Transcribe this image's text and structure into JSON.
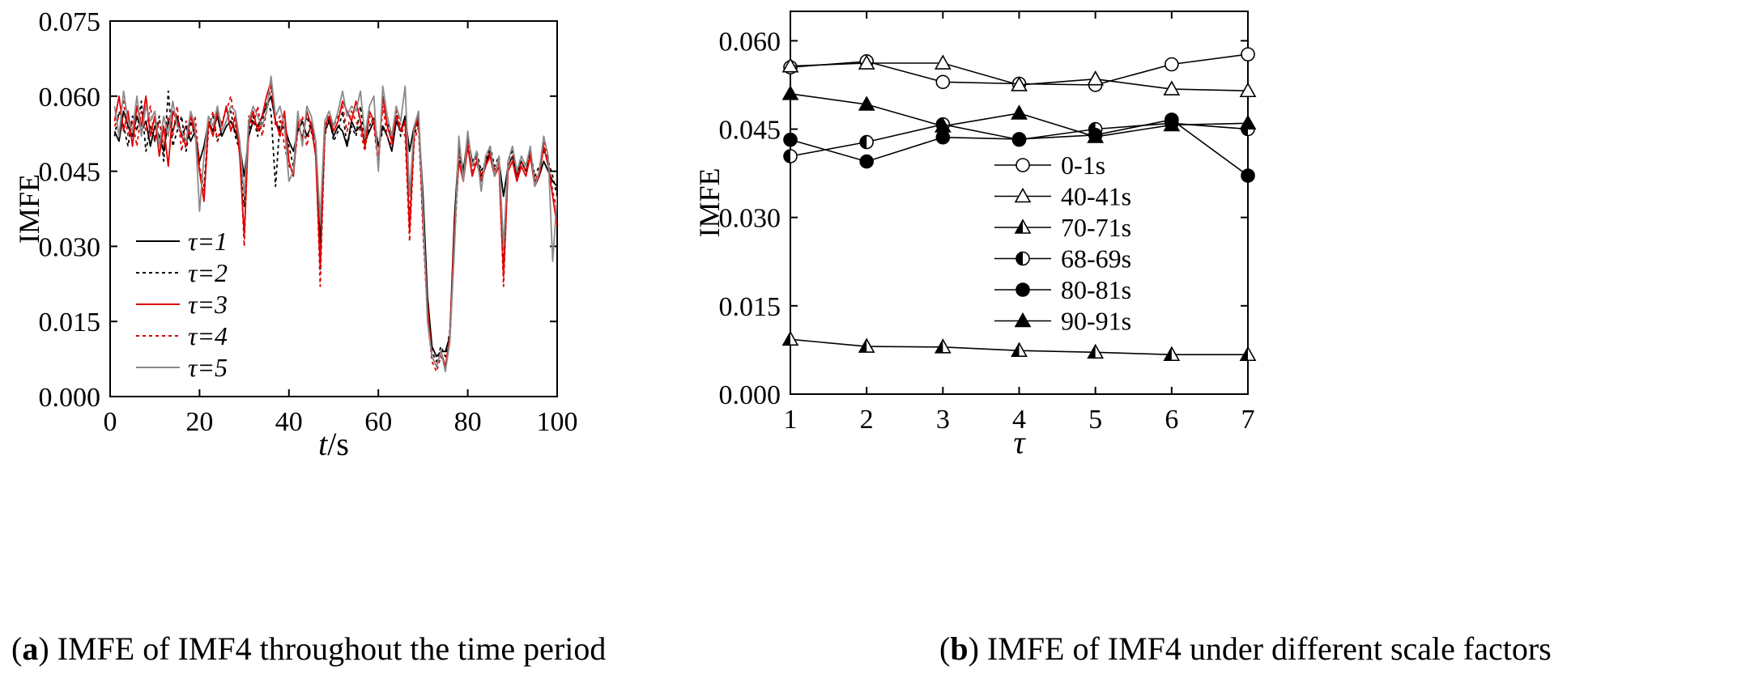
{
  "captions": {
    "a": {
      "letter": "a",
      "text": "IMFE of IMF4 throughout the time period"
    },
    "b": {
      "letter": "b",
      "text": "IMFE of IMF4 under different scale factors"
    }
  },
  "chart_data": [
    {
      "type": "line",
      "title": "",
      "xlabel_var": "t",
      "xlabel_unit": "/s",
      "ylabel": "IMFE",
      "xlim": [
        0,
        100
      ],
      "ylim": [
        0,
        0.075
      ],
      "xticks": [
        "0",
        "20",
        "40",
        "60",
        "80",
        "100"
      ],
      "xtick_values": [
        0,
        20,
        40,
        60,
        80,
        100
      ],
      "yticks": [
        "0.000",
        "0.015",
        "0.030",
        "0.045",
        "0.060",
        "0.075"
      ],
      "ytick_values": [
        0,
        0.015,
        0.03,
        0.045,
        0.06,
        0.075
      ],
      "legend_position": "bottom-left",
      "x": [
        1,
        2,
        3,
        4,
        5,
        6,
        7,
        8,
        9,
        10,
        11,
        12,
        13,
        14,
        15,
        16,
        17,
        18,
        19,
        20,
        21,
        22,
        23,
        24,
        25,
        26,
        27,
        28,
        29,
        30,
        31,
        32,
        33,
        34,
        35,
        36,
        37,
        38,
        39,
        40,
        41,
        42,
        43,
        44,
        45,
        46,
        47,
        48,
        49,
        50,
        51,
        52,
        53,
        54,
        55,
        56,
        57,
        58,
        59,
        60,
        61,
        62,
        63,
        64,
        65,
        66,
        67,
        68,
        69,
        70,
        71,
        72,
        73,
        74,
        75,
        76,
        77,
        78,
        79,
        80,
        81,
        82,
        83,
        84,
        85,
        86,
        87,
        88,
        89,
        90,
        91,
        92,
        93,
        94,
        95,
        96,
        97,
        98,
        99,
        100
      ],
      "series": [
        {
          "name": "τ=1",
          "color": "#000000",
          "dash": "solid",
          "values": [
            0.053,
            0.051,
            0.057,
            0.054,
            0.052,
            0.056,
            0.053,
            0.055,
            0.05,
            0.054,
            0.052,
            0.049,
            0.055,
            0.053,
            0.056,
            0.052,
            0.054,
            0.051,
            0.053,
            0.047,
            0.05,
            0.055,
            0.053,
            0.056,
            0.052,
            0.054,
            0.055,
            0.053,
            0.05,
            0.044,
            0.052,
            0.055,
            0.054,
            0.056,
            0.058,
            0.06,
            0.055,
            0.053,
            0.054,
            0.051,
            0.049,
            0.053,
            0.055,
            0.052,
            0.054,
            0.051,
            0.03,
            0.053,
            0.055,
            0.052,
            0.054,
            0.053,
            0.05,
            0.055,
            0.053,
            0.054,
            0.051,
            0.053,
            0.055,
            0.05,
            0.054,
            0.052,
            0.049,
            0.055,
            0.053,
            0.056,
            0.049,
            0.054,
            0.055,
            0.04,
            0.02,
            0.01,
            0.008,
            0.009,
            0.009,
            0.012,
            0.035,
            0.05,
            0.045,
            0.052,
            0.047,
            0.048,
            0.044,
            0.046,
            0.049,
            0.045,
            0.047,
            0.04,
            0.046,
            0.048,
            0.044,
            0.047,
            0.045,
            0.048,
            0.043,
            0.044,
            0.047,
            0.045,
            0.043,
            0.042
          ]
        },
        {
          "name": "τ=2",
          "color": "#000000",
          "dash": "4,4",
          "values": [
            0.052,
            0.057,
            0.054,
            0.05,
            0.056,
            0.053,
            0.059,
            0.049,
            0.054,
            0.051,
            0.056,
            0.047,
            0.061,
            0.05,
            0.053,
            0.056,
            0.049,
            0.055,
            0.052,
            0.045,
            0.042,
            0.054,
            0.056,
            0.051,
            0.053,
            0.055,
            0.057,
            0.052,
            0.049,
            0.038,
            0.053,
            0.056,
            0.052,
            0.055,
            0.059,
            0.057,
            0.042,
            0.055,
            0.053,
            0.05,
            0.046,
            0.054,
            0.052,
            0.056,
            0.053,
            0.049,
            0.025,
            0.052,
            0.056,
            0.051,
            0.053,
            0.057,
            0.05,
            0.054,
            0.052,
            0.058,
            0.05,
            0.054,
            0.056,
            0.05,
            0.053,
            0.055,
            0.051,
            0.057,
            0.052,
            0.055,
            0.035,
            0.052,
            0.055,
            0.038,
            0.018,
            0.009,
            0.007,
            0.01,
            0.008,
            0.013,
            0.03,
            0.048,
            0.044,
            0.05,
            0.046,
            0.049,
            0.045,
            0.047,
            0.05,
            0.046,
            0.048,
            0.025,
            0.047,
            0.049,
            0.045,
            0.048,
            0.046,
            0.049,
            0.044,
            0.046,
            0.049,
            0.047,
            0.044,
            0.04
          ]
        },
        {
          "name": "τ=3",
          "color": "#e00000",
          "dash": "solid",
          "values": [
            0.055,
            0.06,
            0.053,
            0.057,
            0.05,
            0.058,
            0.054,
            0.06,
            0.052,
            0.056,
            0.048,
            0.054,
            0.046,
            0.057,
            0.055,
            0.052,
            0.05,
            0.056,
            0.053,
            0.045,
            0.039,
            0.055,
            0.052,
            0.057,
            0.054,
            0.058,
            0.053,
            0.056,
            0.048,
            0.032,
            0.054,
            0.057,
            0.053,
            0.056,
            0.06,
            0.063,
            0.055,
            0.052,
            0.057,
            0.047,
            0.044,
            0.055,
            0.051,
            0.057,
            0.054,
            0.048,
            0.026,
            0.054,
            0.056,
            0.053,
            0.055,
            0.059,
            0.057,
            0.055,
            0.059,
            0.055,
            0.05,
            0.057,
            0.055,
            0.047,
            0.06,
            0.054,
            0.051,
            0.056,
            0.053,
            0.055,
            0.033,
            0.053,
            0.056,
            0.035,
            0.018,
            0.008,
            0.006,
            0.009,
            0.006,
            0.012,
            0.033,
            0.047,
            0.043,
            0.05,
            0.044,
            0.047,
            0.043,
            0.046,
            0.048,
            0.044,
            0.046,
            0.024,
            0.045,
            0.047,
            0.043,
            0.046,
            0.044,
            0.048,
            0.042,
            0.044,
            0.05,
            0.046,
            0.04,
            0.034
          ]
        },
        {
          "name": "τ=4",
          "color": "#e00000",
          "dash": "4,4",
          "values": [
            0.054,
            0.056,
            0.059,
            0.052,
            0.055,
            0.05,
            0.057,
            0.053,
            0.058,
            0.051,
            0.055,
            0.05,
            0.056,
            0.052,
            0.058,
            0.049,
            0.055,
            0.052,
            0.056,
            0.046,
            0.04,
            0.053,
            0.057,
            0.051,
            0.055,
            0.057,
            0.06,
            0.054,
            0.05,
            0.03,
            0.056,
            0.054,
            0.058,
            0.052,
            0.057,
            0.062,
            0.054,
            0.056,
            0.05,
            0.046,
            0.045,
            0.053,
            0.056,
            0.05,
            0.055,
            0.05,
            0.022,
            0.052,
            0.057,
            0.054,
            0.056,
            0.058,
            0.053,
            0.057,
            0.055,
            0.053,
            0.049,
            0.056,
            0.054,
            0.046,
            0.058,
            0.052,
            0.05,
            0.057,
            0.054,
            0.052,
            0.031,
            0.051,
            0.054,
            0.033,
            0.016,
            0.007,
            0.005,
            0.008,
            0.006,
            0.011,
            0.031,
            0.049,
            0.044,
            0.051,
            0.045,
            0.048,
            0.044,
            0.047,
            0.049,
            0.045,
            0.047,
            0.022,
            0.046,
            0.048,
            0.044,
            0.047,
            0.045,
            0.049,
            0.043,
            0.045,
            0.051,
            0.047,
            0.041,
            0.037
          ]
        },
        {
          "name": "τ=5",
          "color": "#8a8a8a",
          "dash": "solid",
          "values": [
            0.058,
            0.052,
            0.061,
            0.055,
            0.053,
            0.06,
            0.052,
            0.058,
            0.055,
            0.057,
            0.05,
            0.056,
            0.052,
            0.059,
            0.054,
            0.053,
            0.051,
            0.057,
            0.054,
            0.037,
            0.048,
            0.056,
            0.054,
            0.058,
            0.053,
            0.055,
            0.058,
            0.057,
            0.051,
            0.04,
            0.055,
            0.058,
            0.056,
            0.054,
            0.057,
            0.064,
            0.056,
            0.058,
            0.054,
            0.043,
            0.045,
            0.057,
            0.05,
            0.058,
            0.056,
            0.051,
            0.035,
            0.055,
            0.057,
            0.054,
            0.057,
            0.061,
            0.056,
            0.058,
            0.057,
            0.061,
            0.052,
            0.058,
            0.06,
            0.045,
            0.062,
            0.056,
            0.052,
            0.058,
            0.055,
            0.062,
            0.04,
            0.054,
            0.057,
            0.037,
            0.015,
            0.008,
            0.006,
            0.009,
            0.005,
            0.011,
            0.029,
            0.052,
            0.043,
            0.053,
            0.046,
            0.049,
            0.041,
            0.048,
            0.05,
            0.044,
            0.048,
            0.03,
            0.047,
            0.05,
            0.045,
            0.048,
            0.046,
            0.05,
            0.042,
            0.045,
            0.052,
            0.048,
            0.027,
            0.04
          ]
        }
      ]
    },
    {
      "type": "line",
      "title": "",
      "xlabel": "τ",
      "ylabel": "IMFE",
      "xlim": [
        1,
        7
      ],
      "ylim": [
        0,
        0.065
      ],
      "xticks": [
        "1",
        "2",
        "3",
        "4",
        "5",
        "6",
        "7"
      ],
      "xtick_values": [
        1,
        2,
        3,
        4,
        5,
        6,
        7
      ],
      "yticks": [
        "0.000",
        "0.015",
        "0.030",
        "0.045",
        "0.060"
      ],
      "ytick_values": [
        0,
        0.015,
        0.03,
        0.045,
        0.06
      ],
      "legend_position": "center-right",
      "x": [
        1,
        2,
        3,
        4,
        5,
        6,
        7
      ],
      "series": [
        {
          "name": "0-1s",
          "marker": "circle-open",
          "values": [
            0.0555,
            0.0565,
            0.053,
            0.0527,
            0.0525,
            0.056,
            0.0577
          ]
        },
        {
          "name": "40-41s",
          "marker": "triangle-open",
          "values": [
            0.0557,
            0.0562,
            0.0562,
            0.0525,
            0.0535,
            0.0518,
            0.0515
          ]
        },
        {
          "name": "70-71s",
          "marker": "triangle-half",
          "values": [
            0.0093,
            0.0081,
            0.008,
            0.0074,
            0.0071,
            0.0067,
            0.0067
          ]
        },
        {
          "name": "68-69s",
          "marker": "circle-half",
          "values": [
            0.0404,
            0.0428,
            0.0458,
            0.0432,
            0.045,
            0.046,
            0.045
          ]
        },
        {
          "name": "80-81s",
          "marker": "circle-filled",
          "values": [
            0.0432,
            0.0395,
            0.0436,
            0.0433,
            0.044,
            0.0466,
            0.0371
          ]
        },
        {
          "name": "90-91s",
          "marker": "triangle-filled",
          "values": [
            0.051,
            0.0492,
            0.0455,
            0.0477,
            0.0437,
            0.0457,
            0.046
          ]
        }
      ]
    }
  ]
}
